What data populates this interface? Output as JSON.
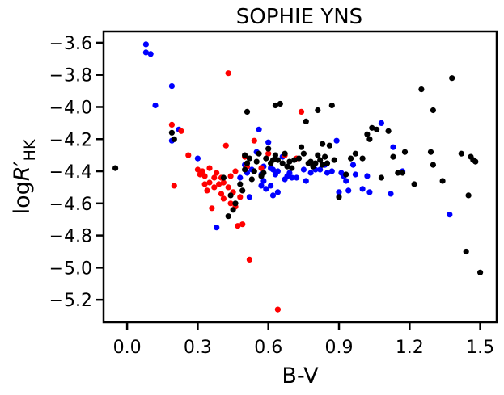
{
  "chart_data": {
    "type": "scatter",
    "title": "SOPHIE YNS",
    "xlabel": "B-V",
    "ylabel": {
      "prefix": "log",
      "var": "R",
      "prime": "′",
      "sub": "HK"
    },
    "xlim": [
      -0.1,
      1.57
    ],
    "ylim": [
      -5.34,
      -3.53
    ],
    "x_ticks": [
      0.0,
      0.3,
      0.6,
      0.9,
      1.2,
      1.5
    ],
    "x_tick_labels": [
      "0.0",
      "0.3",
      "0.6",
      "0.9",
      "1.2",
      "1.5"
    ],
    "y_ticks": [
      -3.6,
      -3.8,
      -4.0,
      -4.2,
      -4.4,
      -4.6,
      -4.8,
      -5.0,
      -5.2
    ],
    "y_tick_labels": [
      "−3.6",
      "−3.8",
      "−4.0",
      "−4.2",
      "−4.4",
      "−4.6",
      "−4.8",
      "−5.0",
      "−5.2"
    ],
    "grid": false,
    "series": [
      {
        "color": "#0000ff",
        "points": [
          [
            0.08,
            -3.61
          ],
          [
            0.08,
            -3.66
          ],
          [
            0.1,
            -3.67
          ],
          [
            0.12,
            -3.99
          ],
          [
            0.19,
            -3.87
          ],
          [
            0.19,
            -4.21
          ],
          [
            0.22,
            -4.14
          ],
          [
            0.3,
            -4.32
          ],
          [
            0.38,
            -4.75
          ],
          [
            0.48,
            -4.44
          ],
          [
            0.5,
            -4.36
          ],
          [
            0.51,
            -4.41
          ],
          [
            0.52,
            -4.56
          ],
          [
            0.53,
            -4.39
          ],
          [
            0.55,
            -4.28
          ],
          [
            0.56,
            -4.14
          ],
          [
            0.57,
            -4.42
          ],
          [
            0.57,
            -4.49
          ],
          [
            0.58,
            -4.37
          ],
          [
            0.58,
            -4.46
          ],
          [
            0.59,
            -4.51
          ],
          [
            0.6,
            -4.22
          ],
          [
            0.61,
            -4.38
          ],
          [
            0.61,
            -4.49
          ],
          [
            0.62,
            -4.39
          ],
          [
            0.62,
            -4.55
          ],
          [
            0.63,
            -4.42
          ],
          [
            0.64,
            -4.4
          ],
          [
            0.64,
            -4.53
          ],
          [
            0.66,
            -4.31
          ],
          [
            0.67,
            -4.45
          ],
          [
            0.68,
            -4.43
          ],
          [
            0.69,
            -4.41
          ],
          [
            0.7,
            -4.44
          ],
          [
            0.72,
            -4.44
          ],
          [
            0.75,
            -4.39
          ],
          [
            0.76,
            -4.46
          ],
          [
            0.78,
            -4.41
          ],
          [
            0.8,
            -4.39
          ],
          [
            0.82,
            -4.39
          ],
          [
            0.84,
            -4.36
          ],
          [
            0.85,
            -4.41
          ],
          [
            0.87,
            -4.4
          ],
          [
            0.89,
            -4.21
          ],
          [
            0.9,
            -4.53
          ],
          [
            0.91,
            -4.41
          ],
          [
            0.92,
            -4.43
          ],
          [
            0.93,
            -4.46
          ],
          [
            0.94,
            -4.52
          ],
          [
            0.96,
            -4.36
          ],
          [
            0.97,
            -4.42
          ],
          [
            1.0,
            -4.51
          ],
          [
            1.02,
            -4.43
          ],
          [
            1.03,
            -4.53
          ],
          [
            1.08,
            -4.1
          ],
          [
            1.12,
            -4.54
          ],
          [
            1.13,
            -4.25
          ],
          [
            1.17,
            -4.4
          ],
          [
            1.37,
            -4.67
          ]
        ]
      },
      {
        "color": "#ff0000",
        "points": [
          [
            0.19,
            -4.11
          ],
          [
            0.2,
            -4.49
          ],
          [
            0.23,
            -4.15
          ],
          [
            0.26,
            -4.3
          ],
          [
            0.3,
            -4.39
          ],
          [
            0.31,
            -4.42
          ],
          [
            0.32,
            -4.4
          ],
          [
            0.33,
            -4.48
          ],
          [
            0.33,
            -4.43
          ],
          [
            0.34,
            -4.52
          ],
          [
            0.35,
            -4.38
          ],
          [
            0.35,
            -4.47
          ],
          [
            0.36,
            -4.63
          ],
          [
            0.37,
            -4.44
          ],
          [
            0.37,
            -4.5
          ],
          [
            0.38,
            -4.41
          ],
          [
            0.39,
            -4.48
          ],
          [
            0.4,
            -4.44
          ],
          [
            0.4,
            -4.54
          ],
          [
            0.41,
            -4.47
          ],
          [
            0.41,
            -4.57
          ],
          [
            0.42,
            -4.24
          ],
          [
            0.43,
            -3.79
          ],
          [
            0.43,
            -4.5
          ],
          [
            0.44,
            -4.6
          ],
          [
            0.44,
            -4.43
          ],
          [
            0.45,
            -4.53
          ],
          [
            0.46,
            -4.4
          ],
          [
            0.46,
            -4.62
          ],
          [
            0.47,
            -4.74
          ],
          [
            0.48,
            -4.56
          ],
          [
            0.49,
            -4.73
          ],
          [
            0.5,
            -4.31
          ],
          [
            0.51,
            -4.37
          ],
          [
            0.52,
            -4.95
          ],
          [
            0.54,
            -4.21
          ],
          [
            0.57,
            -4.38
          ],
          [
            0.6,
            -4.29
          ],
          [
            0.64,
            -5.26
          ],
          [
            0.67,
            -4.3
          ],
          [
            0.72,
            -4.32
          ],
          [
            0.74,
            -4.03
          ]
        ]
      },
      {
        "color": "#000000",
        "points": [
          [
            -0.05,
            -4.38
          ],
          [
            0.19,
            -4.16
          ],
          [
            0.2,
            -4.2
          ],
          [
            0.41,
            -4.44
          ],
          [
            0.43,
            -4.68
          ],
          [
            0.44,
            -4.55
          ],
          [
            0.45,
            -4.64
          ],
          [
            0.46,
            -4.6
          ],
          [
            0.48,
            -4.48
          ],
          [
            0.49,
            -4.52
          ],
          [
            0.5,
            -4.3
          ],
          [
            0.5,
            -4.39
          ],
          [
            0.51,
            -4.03
          ],
          [
            0.51,
            -4.35
          ],
          [
            0.52,
            -4.32
          ],
          [
            0.53,
            -4.45
          ],
          [
            0.54,
            -4.4
          ],
          [
            0.55,
            -4.34
          ],
          [
            0.56,
            -4.29
          ],
          [
            0.57,
            -4.43
          ],
          [
            0.58,
            -4.41
          ],
          [
            0.59,
            -4.32
          ],
          [
            0.6,
            -4.26
          ],
          [
            0.61,
            -4.35
          ],
          [
            0.62,
            -4.33
          ],
          [
            0.63,
            -4.3
          ],
          [
            0.63,
            -3.99
          ],
          [
            0.64,
            -4.33
          ],
          [
            0.65,
            -3.98
          ],
          [
            0.66,
            -4.35
          ],
          [
            0.67,
            -4.29
          ],
          [
            0.68,
            -4.37
          ],
          [
            0.69,
            -4.34
          ],
          [
            0.7,
            -4.38
          ],
          [
            0.71,
            -4.33
          ],
          [
            0.73,
            -4.32
          ],
          [
            0.74,
            -4.25
          ],
          [
            0.75,
            -4.29
          ],
          [
            0.76,
            -4.09
          ],
          [
            0.77,
            -4.35
          ],
          [
            0.78,
            -4.34
          ],
          [
            0.79,
            -4.37
          ],
          [
            0.8,
            -4.35
          ],
          [
            0.81,
            -4.02
          ],
          [
            0.81,
            -4.3
          ],
          [
            0.82,
            -4.33
          ],
          [
            0.83,
            -4.36
          ],
          [
            0.83,
            -4.23
          ],
          [
            0.84,
            -4.31
          ],
          [
            0.85,
            -4.35
          ],
          [
            0.86,
            -4.24
          ],
          [
            0.87,
            -3.99
          ],
          [
            0.88,
            -4.33
          ],
          [
            0.9,
            -4.56
          ],
          [
            0.93,
            -4.42
          ],
          [
            0.95,
            -4.32
          ],
          [
            0.97,
            -4.29
          ],
          [
            1.0,
            -4.32
          ],
          [
            1.02,
            -4.17
          ],
          [
            1.03,
            -4.2
          ],
          [
            1.04,
            -4.13
          ],
          [
            1.06,
            -4.14
          ],
          [
            1.08,
            -4.44
          ],
          [
            1.11,
            -4.15
          ],
          [
            1.13,
            -4.31
          ],
          [
            1.15,
            -4.41
          ],
          [
            1.17,
            -4.41
          ],
          [
            1.18,
            -4.28
          ],
          [
            1.22,
            -4.48
          ],
          [
            1.25,
            -3.89
          ],
          [
            1.29,
            -4.28
          ],
          [
            1.3,
            -4.02
          ],
          [
            1.3,
            -4.36
          ],
          [
            1.34,
            -4.46
          ],
          [
            1.38,
            -3.82
          ],
          [
            1.42,
            -4.29
          ],
          [
            1.44,
            -4.9
          ],
          [
            1.45,
            -4.55
          ],
          [
            1.46,
            -4.31
          ],
          [
            1.47,
            -4.33
          ],
          [
            1.48,
            -4.34
          ],
          [
            1.5,
            -5.03
          ]
        ]
      }
    ]
  }
}
